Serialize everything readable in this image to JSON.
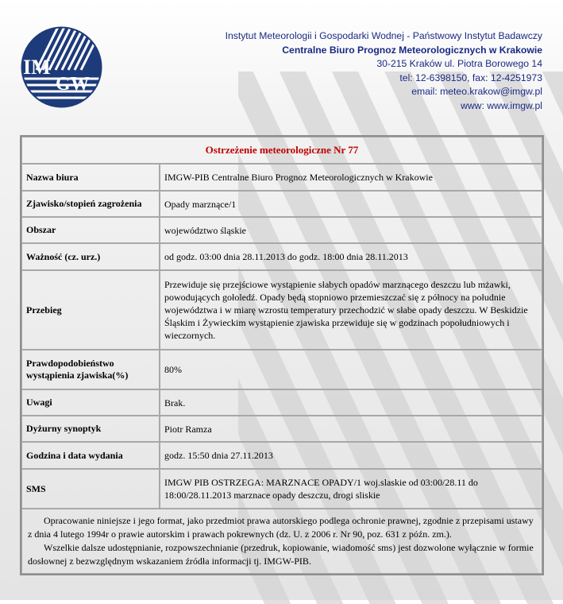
{
  "header": {
    "logo_text": "IMGW",
    "lines": [
      "Instytut Meteorologii i Gospodarki Wodnej - Państwowy Instytut Badawczy",
      "Centralne Biuro Prognoz Meteorologicznych w Krakowie",
      "30-215 Kraków ul. Piotra Borowego 14",
      "tel: 12-6398150, fax: 12-4251973",
      "email: meteo.krakow@imgw.pl",
      "www: www.imgw.pl"
    ],
    "color": "#1b2a84"
  },
  "warning": {
    "title": "Ostrzeżenie meteorologiczne Nr 77",
    "title_color": "#c00000",
    "rows": [
      {
        "label": "Nazwa biura",
        "value": "IMGW-PIB Centralne Biuro Prognoz Meteorologicznych w Krakowie"
      },
      {
        "label": "Zjawisko/stopień zagrożenia",
        "value": "Opady marznące/1"
      },
      {
        "label": "Obszar",
        "value": "województwo śląskie"
      },
      {
        "label": "Ważność (cz. urz.)",
        "value": "od godz. 03:00 dnia 28.11.2013 do godz. 18:00 dnia 28.11.2013"
      },
      {
        "label": "Przebieg",
        "value": "Przewiduje się przejściowe wystąpienie słabych opadów marznącego deszczu lub mżawki, powodujących gołoledź. Opady będą stopniowo przemieszczać się z północy na południe województwa i w miarę wzrostu temperatury przechodzić w słabe opady deszczu. W Beskidzie Śląskim i Żywieckim wystąpienie zjawiska przewiduje się w godzinach popołudniowych i wieczornych."
      },
      {
        "label": "Prawdopodobieństwo wystąpienia zjawiska(%)",
        "value": "80%"
      },
      {
        "label": "Uwagi",
        "value": "Brak."
      },
      {
        "label": "Dyżurny synoptyk",
        "value": "Piotr Ramza"
      },
      {
        "label": "Godzina i data wydania",
        "value": "godz. 15:50 dnia 27.11.2013"
      },
      {
        "label": "SMS",
        "value": "IMGW PIB OSTRZEGA: MARZNACE OPADY/1 woj.slaskie od 03:00/28.11 do 18:00/28.11.2013 marznace opady deszczu, drogi sliskie"
      }
    ],
    "footer": [
      "Opracowanie niniejsze i jego format, jako przedmiot prawa autorskiego podlega ochronie prawnej, zgodnie z przepisami ustawy z dnia 4 lutego 1994r o prawie autorskim i prawach pokrewnych (dz. U. z 2006 r. Nr 90, poz. 631 z późn. zm.).",
      "Wszelkie dalsze udostępnianie, rozpowszechnianie (przedruk, kopiowanie, wiadomość sms) jest dozwolone wyłącznie w formie dosłownej z bezwzględnym wskazaniem źródła informacji tj. IMGW-PIB."
    ]
  }
}
